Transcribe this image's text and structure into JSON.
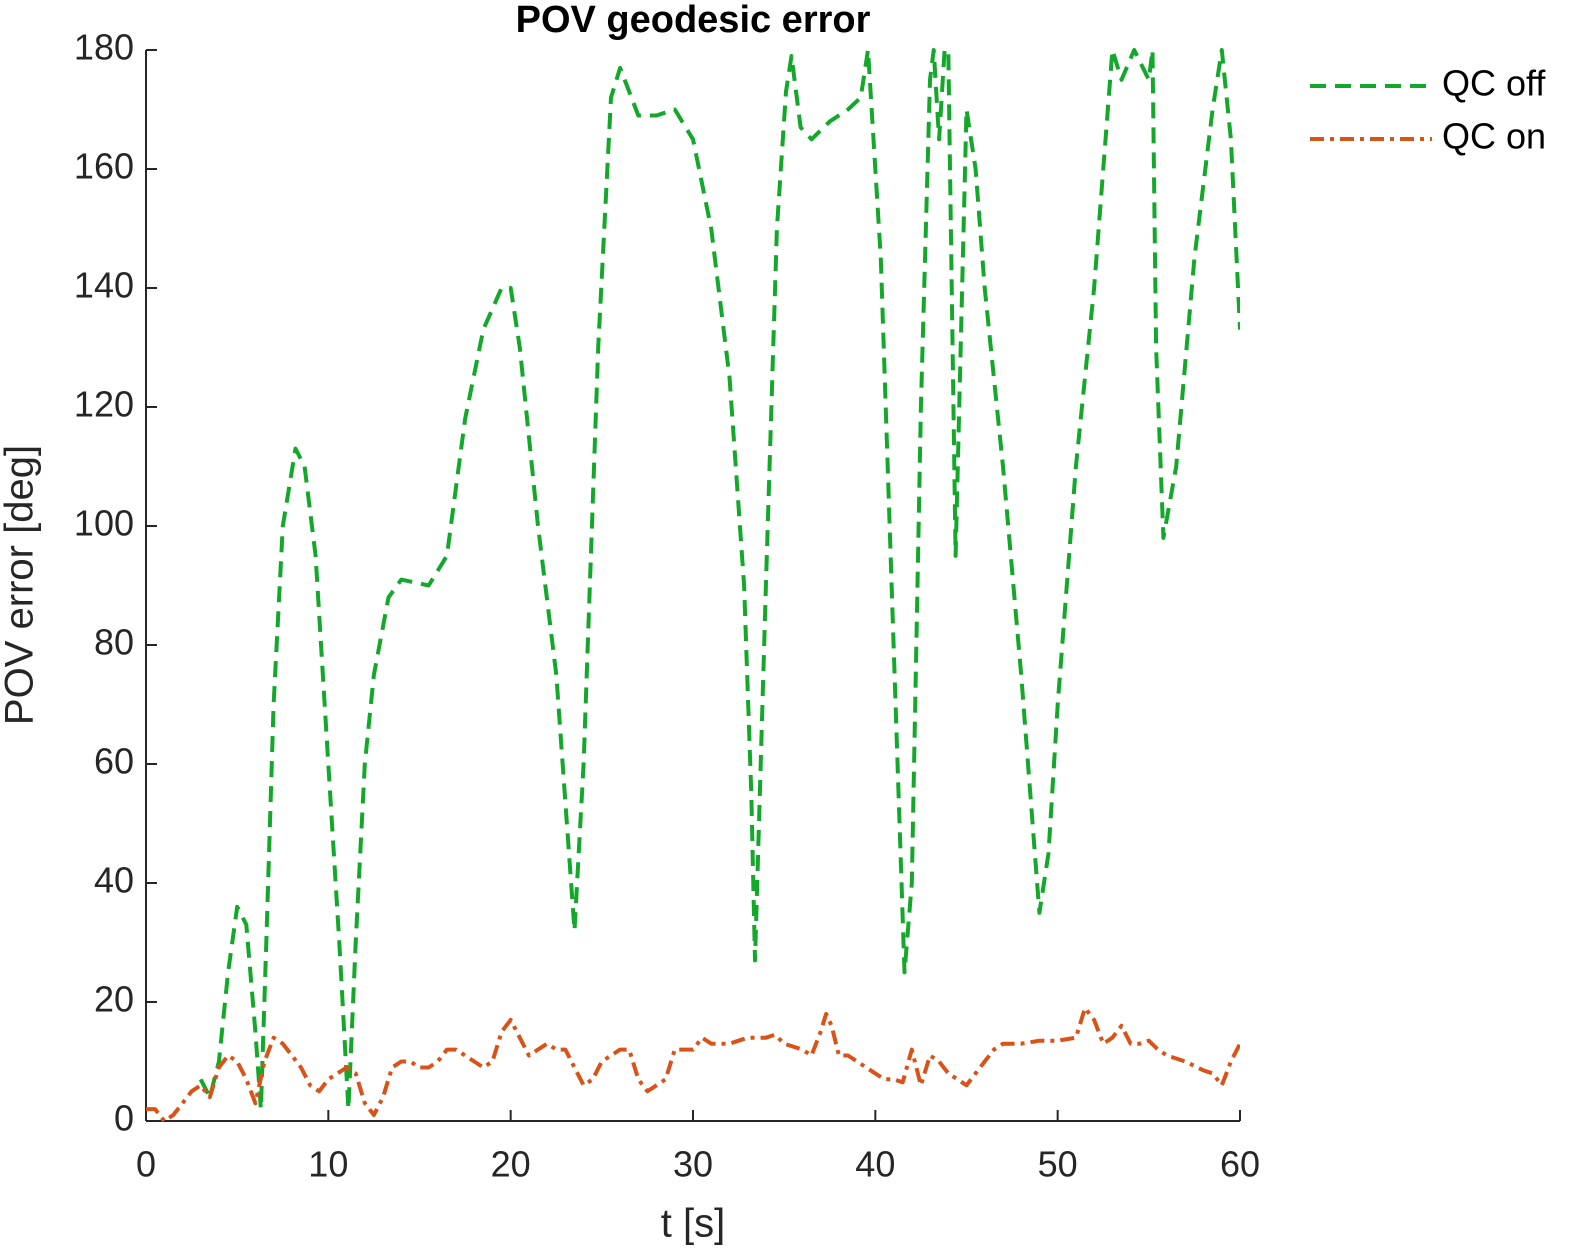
{
  "chart_data": {
    "type": "line",
    "title": "POV geodesic error",
    "xlabel": "t [s]",
    "ylabel": "POV error [deg]",
    "xlim": [
      0,
      60
    ],
    "xticks": [
      0,
      10,
      20,
      30,
      40,
      50,
      60
    ],
    "ylim": [
      0,
      180
    ],
    "yticks": [
      0,
      20,
      40,
      60,
      80,
      100,
      120,
      140,
      160,
      180
    ],
    "grid": false,
    "legend": "outside-right",
    "series": [
      {
        "name": "QC off",
        "color": "#14a82b",
        "dash": "dashed",
        "x": [
          3.0,
          3.5,
          4.0,
          4.5,
          5.0,
          5.5,
          6.0,
          6.3,
          6.6,
          7.0,
          7.5,
          8.2,
          8.7,
          9.3,
          10.0,
          10.6,
          11.1,
          11.5,
          12.0,
          12.5,
          13.3,
          14.0,
          15.5,
          16.5,
          17.5,
          18.5,
          19.5,
          20.0,
          20.5,
          21.5,
          22.5,
          23.5,
          24.0,
          24.8,
          25.5,
          26.0,
          26.5,
          27.0,
          28.0,
          29.0,
          30.0,
          31.0,
          32.0,
          32.8,
          33.2,
          33.4,
          34.0,
          34.6,
          35.1,
          35.4,
          35.9,
          36.5,
          37.5,
          38.5,
          39.2,
          39.6,
          40.3,
          41.0,
          41.6,
          42.0,
          42.5,
          43.0,
          43.2,
          43.5,
          43.8,
          44.0,
          44.4,
          45.0,
          45.5,
          46.0,
          47.0,
          48.0,
          49.0,
          49.5,
          50.0,
          51.0,
          52.0,
          53.0,
          53.5,
          54.2,
          55.0,
          55.2,
          55.4,
          55.8,
          56.5,
          57.5,
          58.5,
          59.0,
          59.5,
          60.0
        ],
        "values": [
          7,
          4,
          10,
          25,
          36,
          33,
          15,
          2,
          30,
          70,
          100,
          113,
          110,
          95,
          60,
          30,
          2,
          30,
          60,
          75,
          88,
          91,
          90,
          95,
          118,
          133,
          140,
          140,
          130,
          100,
          75,
          32,
          60,
          130,
          172,
          177,
          173,
          169,
          169,
          170,
          165,
          150,
          125,
          90,
          55,
          27,
          90,
          150,
          173,
          179,
          167,
          165,
          168,
          170,
          172,
          180,
          145,
          80,
          25,
          40,
          120,
          175,
          180,
          165,
          180,
          180,
          95,
          170,
          160,
          140,
          110,
          75,
          35,
          45,
          70,
          110,
          140,
          180,
          175,
          180,
          175,
          180,
          130,
          98,
          110,
          145,
          170,
          180,
          165,
          133
        ]
      },
      {
        "name": "QC on",
        "color": "#d95319",
        "dash": "dashdot",
        "x": [
          0,
          0.5,
          1,
          1.5,
          2,
          2.5,
          3,
          3.5,
          4,
          4.5,
          5,
          5.5,
          6,
          6.5,
          7,
          7.5,
          8,
          8.5,
          9,
          9.5,
          10,
          10.5,
          11,
          11.5,
          12,
          12.5,
          13,
          13.5,
          14,
          14.5,
          15,
          15.5,
          16,
          16.5,
          17,
          17.5,
          18,
          18.5,
          19,
          19.5,
          20,
          20.5,
          21,
          21.5,
          22,
          22.5,
          23,
          23.5,
          24,
          24.5,
          25,
          25.5,
          26,
          26.5,
          27,
          27.5,
          28,
          28.5,
          29,
          29.5,
          30,
          30.5,
          31,
          32,
          33,
          34,
          34.5,
          35,
          36,
          36.5,
          37,
          37.3,
          37.6,
          38,
          38.5,
          39,
          39.5,
          40,
          40.5,
          41,
          41.5,
          42,
          42.5,
          43,
          43.5,
          44,
          44.5,
          45,
          45.5,
          46,
          46.5,
          47,
          48,
          49,
          50,
          51,
          51.5,
          52,
          52.5,
          53,
          53.5,
          54,
          54.5,
          55,
          55.5,
          56,
          57,
          58,
          58.5,
          59,
          59.5,
          60
        ],
        "values": [
          2,
          2,
          0,
          1,
          3,
          5,
          6,
          4,
          9,
          11,
          10,
          7,
          3,
          10,
          14,
          13,
          11,
          9,
          6,
          5,
          7,
          8,
          9,
          8,
          3,
          1,
          4,
          9,
          10,
          10,
          9,
          9,
          10,
          12,
          12,
          11,
          10,
          9,
          10,
          15,
          17,
          14,
          11,
          12,
          13,
          12,
          12,
          9,
          6,
          7,
          10,
          11,
          12,
          12,
          7,
          5,
          6,
          7,
          12,
          12,
          12,
          14,
          13,
          13,
          14,
          14,
          14.5,
          13,
          12,
          11,
          15,
          18,
          16,
          11,
          11,
          10,
          9,
          8,
          7,
          7,
          6.5,
          12,
          6,
          11,
          10,
          8,
          7,
          6,
          8,
          10,
          12,
          13,
          13,
          13.5,
          13.5,
          14,
          19,
          17,
          13,
          14,
          16,
          13,
          13,
          13.5,
          12,
          11,
          10,
          8.5,
          8,
          6,
          10,
          13
        ]
      }
    ]
  }
}
